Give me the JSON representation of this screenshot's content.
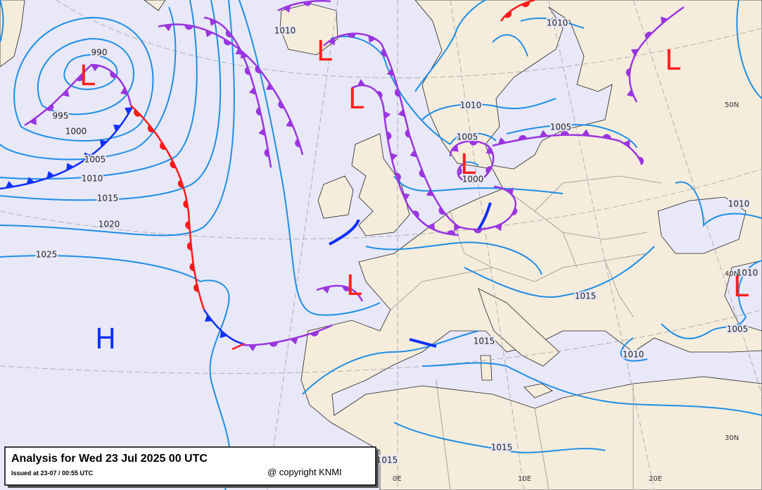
{
  "map": {
    "title": "Analysis for Wed 23 Jul 2025 00 UTC",
    "issued": "Issued at 23-07 / 00:55 UTC",
    "copyright": "@ copyright KNMI",
    "isobar_labels": [
      "990",
      "995",
      "1000",
      "1005",
      "1010",
      "1015",
      "1020",
      "1025",
      "1010",
      "1010",
      "1010",
      "1005",
      "1005",
      "1000",
      "1010",
      "1010",
      "1005",
      "1015",
      "1015",
      "1015",
      "1015",
      "1010"
    ],
    "pressure_centers": [
      "L",
      "L",
      "L",
      "L",
      "L",
      "L",
      "L",
      "H"
    ],
    "grid_labels": [
      "50N",
      "40N",
      "30N",
      "0E",
      "10E",
      "20E"
    ]
  }
}
